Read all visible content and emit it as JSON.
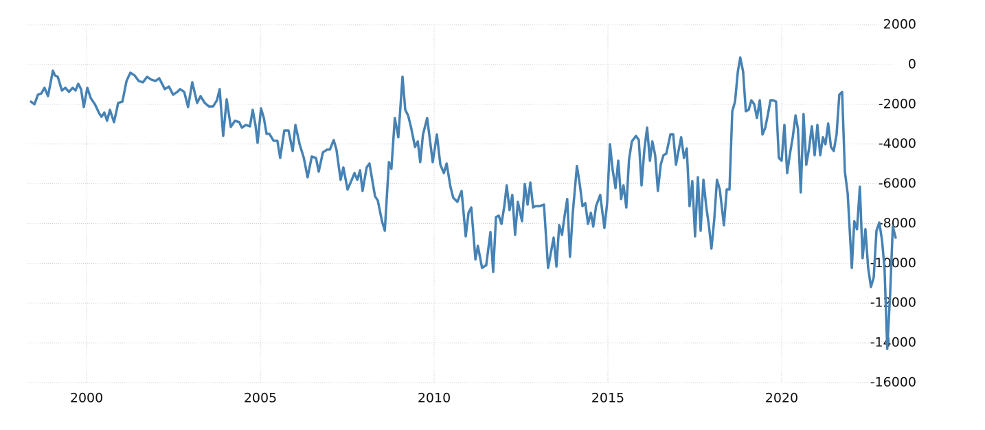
{
  "chart_data": {
    "type": "line",
    "color": "#4682b4",
    "grid": true,
    "xlim": [
      1998.2,
      2023.5
    ],
    "xticks": [
      2000,
      2005,
      2010,
      2015,
      2020
    ],
    "ylim": [
      -16000,
      2000
    ],
    "yticks": [
      2000,
      0,
      -2000,
      -4000,
      -6000,
      -8000,
      -10000,
      -12000,
      -14000,
      -16000
    ],
    "x": [
      1998.4,
      1998.5,
      1998.6,
      1998.7,
      1998.79,
      1998.89,
      1999.03,
      1999.09,
      1999.17,
      1999.29,
      1999.39,
      1999.49,
      1999.6,
      1999.68,
      1999.76,
      1999.84,
      1999.92,
      2000.02,
      2000.12,
      2000.24,
      2000.36,
      2000.43,
      2000.51,
      2000.59,
      2000.67,
      2000.79,
      2000.91,
      2001.03,
      2001.15,
      2001.26,
      2001.38,
      2001.5,
      2001.62,
      2001.74,
      2001.86,
      2001.98,
      2002.09,
      2002.25,
      2002.37,
      2002.49,
      2002.61,
      2002.69,
      2002.81,
      2002.92,
      2003.04,
      2003.18,
      2003.28,
      2003.4,
      2003.52,
      2003.64,
      2003.75,
      2003.83,
      2003.93,
      2004.03,
      2004.15,
      2004.27,
      2004.39,
      2004.47,
      2004.58,
      2004.7,
      2004.78,
      2004.86,
      2004.92,
      2005.02,
      2005.1,
      2005.18,
      2005.26,
      2005.38,
      2005.49,
      2005.57,
      2005.69,
      2005.81,
      2005.93,
      2006.01,
      2006.13,
      2006.25,
      2006.36,
      2006.48,
      2006.6,
      2006.68,
      2006.8,
      2006.92,
      2007.0,
      2007.11,
      2007.19,
      2007.31,
      2007.39,
      2007.51,
      2007.63,
      2007.71,
      2007.79,
      2007.87,
      2007.94,
      2008.06,
      2008.14,
      2008.22,
      2008.3,
      2008.38,
      2008.5,
      2008.58,
      2008.7,
      2008.77,
      2008.87,
      2008.97,
      2009.09,
      2009.17,
      2009.25,
      2009.33,
      2009.45,
      2009.53,
      2009.6,
      2009.68,
      2009.8,
      2009.88,
      2009.96,
      2010.08,
      2010.18,
      2010.28,
      2010.36,
      2010.47,
      2010.55,
      2010.67,
      2010.79,
      2010.91,
      2010.99,
      2011.07,
      2011.19,
      2011.26,
      2011.38,
      2011.5,
      2011.62,
      2011.7,
      2011.78,
      2011.86,
      2011.94,
      2012.02,
      2012.09,
      2012.17,
      2012.25,
      2012.33,
      2012.41,
      2012.53,
      2012.61,
      2012.69,
      2012.77,
      2012.85,
      2012.92,
      2013.04,
      2013.16,
      2013.28,
      2013.36,
      2013.44,
      2013.52,
      2013.6,
      2013.68,
      2013.75,
      2013.83,
      2013.91,
      2013.99,
      2014.11,
      2014.19,
      2014.27,
      2014.35,
      2014.43,
      2014.51,
      2014.58,
      2014.66,
      2014.78,
      2014.9,
      2014.98,
      2015.06,
      2015.14,
      2015.22,
      2015.3,
      2015.38,
      2015.45,
      2015.53,
      2015.61,
      2015.69,
      2015.81,
      2015.89,
      2015.97,
      2016.05,
      2016.13,
      2016.21,
      2016.28,
      2016.36,
      2016.44,
      2016.52,
      2016.6,
      2016.68,
      2016.8,
      2016.88,
      2016.96,
      2017.04,
      2017.11,
      2017.19,
      2017.27,
      2017.35,
      2017.43,
      2017.51,
      2017.59,
      2017.67,
      2017.75,
      2017.83,
      2017.91,
      2017.98,
      2018.06,
      2018.14,
      2018.22,
      2018.34,
      2018.42,
      2018.5,
      2018.58,
      2018.66,
      2018.74,
      2018.81,
      2018.89,
      2018.97,
      2019.05,
      2019.13,
      2019.21,
      2019.29,
      2019.37,
      2019.45,
      2019.53,
      2019.6,
      2019.68,
      2019.76,
      2019.84,
      2019.92,
      2020.0,
      2020.08,
      2020.16,
      2020.24,
      2020.32,
      2020.4,
      2020.47,
      2020.55,
      2020.63,
      2020.71,
      2020.79,
      2020.87,
      2020.95,
      2021.03,
      2021.11,
      2021.19,
      2021.26,
      2021.34,
      2021.42,
      2021.5,
      2021.58,
      2021.66,
      2021.74,
      2021.82,
      2021.9,
      2022.02,
      2022.09,
      2022.17,
      2022.25,
      2022.33,
      2022.41,
      2022.49,
      2022.57,
      2022.65,
      2022.73,
      2022.81,
      2022.89,
      2022.96,
      2023.04,
      2023.12,
      2023.2,
      2023.28
    ],
    "values": [
      -1870,
      -2000,
      -1520,
      -1450,
      -1170,
      -1590,
      -310,
      -550,
      -620,
      -1310,
      -1170,
      -1380,
      -1170,
      -1310,
      -970,
      -1240,
      -2140,
      -1170,
      -1690,
      -2000,
      -2450,
      -2630,
      -2420,
      -2830,
      -2280,
      -2900,
      -1930,
      -1870,
      -830,
      -410,
      -550,
      -830,
      -900,
      -620,
      -760,
      -830,
      -690,
      -1240,
      -1110,
      -1520,
      -1380,
      -1240,
      -1380,
      -2140,
      -900,
      -1930,
      -1590,
      -1930,
      -2110,
      -2110,
      -1800,
      -1240,
      -3590,
      -1760,
      -3140,
      -2830,
      -2900,
      -3180,
      -3040,
      -3110,
      -2280,
      -3040,
      -3940,
      -2210,
      -2690,
      -3490,
      -3490,
      -3840,
      -3840,
      -4700,
      -3320,
      -3320,
      -4350,
      -3040,
      -4010,
      -4700,
      -5670,
      -4630,
      -4700,
      -5390,
      -4420,
      -4280,
      -4280,
      -3800,
      -4280,
      -5800,
      -5180,
      -6290,
      -5800,
      -5460,
      -5800,
      -5320,
      -6360,
      -5180,
      -4980,
      -5800,
      -6630,
      -6840,
      -7880,
      -8360,
      -4910,
      -5250,
      -2690,
      -3660,
      -620,
      -2280,
      -2560,
      -3110,
      -4150,
      -3870,
      -4910,
      -3520,
      -2690,
      -3800,
      -4910,
      -3520,
      -5040,
      -5460,
      -4980,
      -6150,
      -6700,
      -6910,
      -6360,
      -8640,
      -7460,
      -7190,
      -9810,
      -9120,
      -10230,
      -10090,
      -8430,
      -10430,
      -7670,
      -7600,
      -8020,
      -7120,
      -6080,
      -7320,
      -6560,
      -8570,
      -6910,
      -7880,
      -6010,
      -7050,
      -5940,
      -7190,
      -7120,
      -7120,
      -7050,
      -10230,
      -9470,
      -8710,
      -10160,
      -8080,
      -8570,
      -7670,
      -6770,
      -9670,
      -7460,
      -5110,
      -6010,
      -7120,
      -6980,
      -8020,
      -7460,
      -8150,
      -7120,
      -6560,
      -8220,
      -6980,
      -4010,
      -5320,
      -6220,
      -4840,
      -6770,
      -6080,
      -7190,
      -4770,
      -3870,
      -3590,
      -3800,
      -6080,
      -4280,
      -3180,
      -4840,
      -3870,
      -4560,
      -6360,
      -5040,
      -4560,
      -4490,
      -3520,
      -3520,
      -5040,
      -4280,
      -3660,
      -4700,
      -4220,
      -7120,
      -5870,
      -8640,
      -5670,
      -8360,
      -5800,
      -7120,
      -8150,
      -9260,
      -7810,
      -5800,
      -6290,
      -8080,
      -6290,
      -6290,
      -2350,
      -1870,
      -350,
      350,
      -350,
      -2350,
      -2280,
      -1800,
      -2000,
      -2690,
      -1800,
      -3520,
      -3180,
      -2560,
      -1800,
      -1800,
      -1870,
      -4700,
      -4840,
      -3040,
      -5460,
      -4490,
      -3660,
      -2560,
      -3250,
      -6430,
      -2490,
      -5040,
      -4220,
      -3110,
      -4560,
      -3040,
      -4560,
      -3660,
      -4010,
      -2970,
      -4150,
      -4350,
      -3520,
      -1520,
      -1380,
      -5390,
      -6500,
      -10230,
      -7880,
      -8290,
      -6150,
      -9740,
      -8290,
      -10230,
      -11190,
      -10710,
      -8360,
      -7950,
      -8840,
      -10230,
      -14300,
      -11610,
      -8150,
      -8710
    ]
  }
}
